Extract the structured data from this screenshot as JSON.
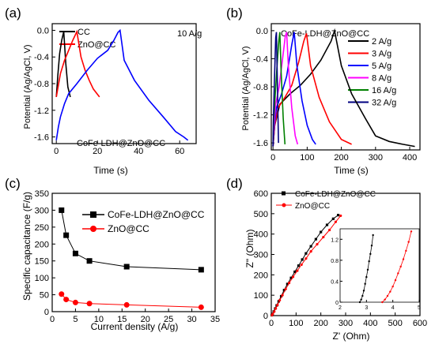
{
  "chart_data": [
    {
      "panel": "(a)",
      "type": "line",
      "annotation": "10 A/g",
      "xlabel": "Time (s)",
      "ylabel": "Potential (Ag/AgCl, V)",
      "xlim": [
        -2,
        68
      ],
      "ylim": [
        -1.7,
        0.1
      ],
      "xticks": [
        0,
        20,
        40,
        60
      ],
      "yticks": [
        -1.6,
        -1.2,
        -0.8,
        -0.4,
        0.0
      ],
      "ytick_labels": [
        "-1.6",
        "-1.2",
        "-0.8",
        "-0.4",
        "0.0"
      ],
      "legend_position": "top-left",
      "series": [
        {
          "name": "CC",
          "color": "#000000",
          "legend": true,
          "x": [
            0,
            0.8,
            1.6,
            2.6,
            3.6,
            4.6,
            5.6,
            6.8
          ],
          "y": [
            -1.0,
            -0.65,
            -0.35,
            -0.15,
            -0.02,
            -0.5,
            -0.85,
            -1.0
          ]
        },
        {
          "name": "ZnO@CC",
          "color": "#ff0000",
          "legend": true,
          "x": [
            0,
            2,
            4,
            6,
            8,
            10,
            12,
            14,
            16,
            18,
            21
          ],
          "y": [
            -1.0,
            -0.65,
            -0.45,
            -0.3,
            -0.15,
            -0.02,
            -0.4,
            -0.6,
            -0.75,
            -0.88,
            -1.0
          ]
        },
        {
          "name": "CoFe-LDH@ZnO@CC",
          "color": "#0000ff",
          "legend": false,
          "label_inline": true,
          "x": [
            0,
            1,
            2,
            4,
            6,
            10,
            15,
            20,
            25,
            28,
            30,
            31,
            33,
            38,
            45,
            52,
            58,
            62,
            64
          ],
          "y": [
            -1.65,
            -1.45,
            -1.3,
            -1.1,
            -0.95,
            -0.8,
            -0.6,
            -0.42,
            -0.3,
            -0.15,
            -0.03,
            0.0,
            -0.45,
            -0.75,
            -1.05,
            -1.3,
            -1.52,
            -1.6,
            -1.65
          ]
        }
      ]
    },
    {
      "panel": "(b)",
      "type": "line",
      "title": "CoFe-LDH@ZnO@CC",
      "xlabel": "Time (s)",
      "ylabel": "Potential (Ag/AgCl, V)",
      "xlim": [
        -5,
        430
      ],
      "ylim": [
        -1.7,
        0.1
      ],
      "xticks": [
        0,
        100,
        200,
        300,
        400
      ],
      "yticks": [
        -1.6,
        -1.2,
        -0.8,
        -0.4,
        0.0
      ],
      "ytick_labels": [
        "-1.6",
        "-1.2",
        "-0.8",
        "-0.4",
        "0.0"
      ],
      "legend_position": "top-right",
      "series": [
        {
          "name": "2 A/g",
          "color": "#000000",
          "x": [
            0,
            5,
            20,
            50,
            80,
            110,
            140,
            170,
            180,
            200,
            230,
            270,
            300,
            340,
            380,
            415
          ],
          "y": [
            -1.65,
            -1.35,
            -1.05,
            -0.9,
            -0.78,
            -0.62,
            -0.42,
            -0.15,
            0.0,
            -0.5,
            -0.9,
            -1.25,
            -1.5,
            -1.58,
            -1.62,
            -1.65
          ]
        },
        {
          "name": "3 A/g",
          "color": "#ff0000",
          "x": [
            0,
            5,
            15,
            35,
            55,
            75,
            90,
            98,
            110,
            135,
            165,
            200,
            230
          ],
          "y": [
            -1.65,
            -1.35,
            -1.1,
            -0.95,
            -0.78,
            -0.45,
            -0.15,
            -0.04,
            -0.5,
            -0.95,
            -1.3,
            -1.55,
            -1.62
          ]
        },
        {
          "name": "5 A/g",
          "color": "#0000ff",
          "x": [
            0,
            4,
            10,
            25,
            40,
            55,
            62,
            70,
            85,
            100,
            115,
            125
          ],
          "y": [
            -1.65,
            -1.35,
            -1.1,
            -0.9,
            -0.65,
            -0.2,
            -0.02,
            -0.5,
            -1.0,
            -1.35,
            -1.55,
            -1.62
          ]
        },
        {
          "name": "8 A/g",
          "color": "#ff00ff",
          "x": [
            0,
            3,
            8,
            18,
            28,
            36,
            40,
            45,
            55,
            65,
            72
          ],
          "y": [
            -1.65,
            -1.35,
            -1.05,
            -0.8,
            -0.4,
            -0.08,
            -0.02,
            -0.5,
            -1.1,
            -1.5,
            -1.62
          ]
        },
        {
          "name": "16 A/g",
          "color": "#008000",
          "x": [
            0,
            2,
            6,
            12,
            17,
            20,
            24,
            30,
            35
          ],
          "y": [
            -1.65,
            -1.3,
            -0.95,
            -0.5,
            -0.15,
            -0.02,
            -0.6,
            -1.25,
            -1.62
          ]
        },
        {
          "name": "32 A/g",
          "color": "#000080",
          "x": [
            0,
            1,
            3,
            6,
            8,
            10,
            13,
            16
          ],
          "y": [
            -1.65,
            -1.3,
            -0.9,
            -0.4,
            -0.1,
            -0.02,
            -0.8,
            -1.6
          ]
        }
      ]
    },
    {
      "panel": "(c)",
      "type": "line",
      "xlabel": "Current density (A/g)",
      "ylabel": "Specific capacitance (F/g)",
      "xlim": [
        0,
        35
      ],
      "ylim": [
        0,
        350
      ],
      "xticks": [
        0,
        5,
        10,
        15,
        20,
        25,
        30,
        35
      ],
      "yticks": [
        0,
        50,
        100,
        150,
        200,
        250,
        300,
        350
      ],
      "legend_position": "top-right",
      "series": [
        {
          "name": "CoFe-LDH@ZnO@CC",
          "color": "#000000",
          "marker": "square",
          "x": [
            2,
            3,
            5,
            8,
            16,
            32
          ],
          "y": [
            300,
            226,
            172,
            150,
            133,
            124
          ]
        },
        {
          "name": "ZnO@CC",
          "color": "#ff0000",
          "marker": "circle",
          "x": [
            2,
            3,
            5,
            8,
            16,
            32
          ],
          "y": [
            52,
            36,
            27,
            24,
            20,
            13
          ]
        }
      ]
    },
    {
      "panel": "(d)",
      "type": "scatter",
      "xlabel": "Z' (Ohm)",
      "ylabel": "Z\" (Ohm)",
      "xlim": [
        0,
        600
      ],
      "ylim": [
        0,
        600
      ],
      "xticks": [
        0,
        100,
        200,
        300,
        400,
        500,
        600
      ],
      "yticks": [
        0,
        100,
        200,
        300,
        400,
        500,
        600
      ],
      "legend_position": "top-left",
      "series": [
        {
          "name": "CoFe-LDH@ZnO@CC",
          "color": "#000000",
          "marker": "square",
          "x": [
            2,
            5,
            10,
            16,
            22,
            30,
            40,
            52,
            65,
            80,
            95,
            110,
            125,
            140,
            160,
            180,
            200,
            225,
            250,
            270
          ],
          "y": [
            2,
            8,
            20,
            35,
            50,
            70,
            95,
            125,
            155,
            185,
            215,
            245,
            275,
            305,
            340,
            375,
            410,
            445,
            475,
            493
          ]
        },
        {
          "name": "ZnO@CC",
          "color": "#ff0000",
          "marker": "circle",
          "x": [
            3,
            6,
            12,
            18,
            25,
            34,
            45,
            58,
            72,
            88,
            105,
            122,
            140,
            160,
            185,
            210,
            235,
            260,
            280
          ],
          "y": [
            2,
            8,
            20,
            35,
            52,
            75,
            100,
            130,
            160,
            190,
            220,
            250,
            280,
            315,
            350,
            385,
            420,
            460,
            490
          ]
        }
      ],
      "inset": {
        "xlim": [
          2,
          5
        ],
        "ylim": [
          0,
          1.4
        ],
        "xticks": [
          2,
          3,
          4,
          5
        ],
        "yticks": [
          0.0,
          0.4,
          0.8,
          1.2
        ],
        "ytick_labels": [
          "0",
          "0.4",
          "0.8",
          "1.2"
        ],
        "series": [
          {
            "color": "#000000",
            "x": [
              2.75,
              2.8,
              2.85,
              2.9,
              2.95,
              3.0,
              3.05,
              3.1,
              3.15,
              3.2,
              3.25
            ],
            "y": [
              0.0,
              0.05,
              0.12,
              0.22,
              0.35,
              0.48,
              0.62,
              0.78,
              0.92,
              1.08,
              1.28
            ]
          },
          {
            "color": "#ff0000",
            "x": [
              3.6,
              3.7,
              3.8,
              3.9,
              4.0,
              4.1,
              4.2,
              4.3,
              4.4,
              4.5,
              4.6,
              4.7
            ],
            "y": [
              0.0,
              0.05,
              0.12,
              0.2,
              0.3,
              0.42,
              0.55,
              0.68,
              0.82,
              0.98,
              1.15,
              1.35
            ]
          }
        ]
      }
    }
  ]
}
